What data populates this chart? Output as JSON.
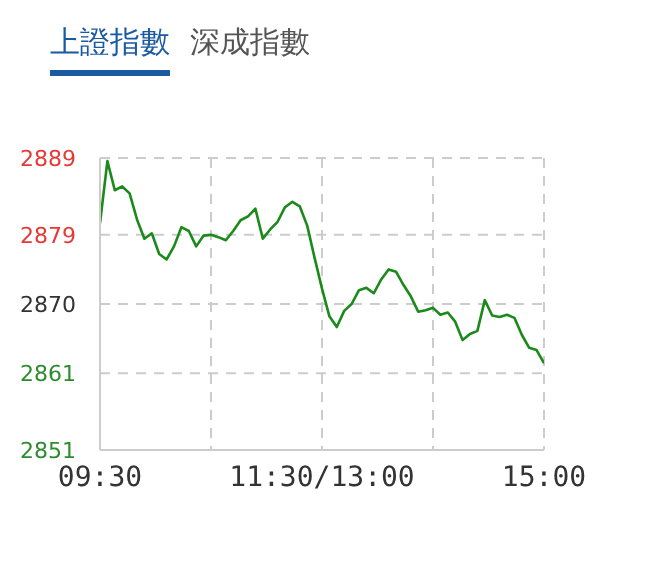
{
  "chart_data": {
    "type": "line",
    "title": "上證指數",
    "annotations": [
      "深成指數"
    ],
    "categories": [
      "09:30",
      null,
      null,
      null,
      null,
      null,
      null,
      null,
      null,
      null,
      null,
      null,
      null,
      null,
      null,
      null,
      null,
      null,
      null,
      null,
      null,
      null,
      null,
      null,
      null,
      null,
      null,
      null,
      null,
      null,
      "11:30/13:00",
      null,
      null,
      null,
      null,
      null,
      null,
      null,
      null,
      null,
      null,
      null,
      null,
      null,
      null,
      null,
      null,
      null,
      null,
      null,
      null,
      null,
      null,
      null,
      null,
      null,
      null,
      null,
      null,
      null,
      "15:00"
    ],
    "series": [
      {
        "color": "#1a8a1a",
        "values": [
          2880.5,
          2888.6,
          2884.8,
          2885.3,
          2884.4,
          2881,
          2878.5,
          2879.2,
          2876.5,
          2875.8,
          2877.5,
          2880,
          2879.5,
          2877.5,
          2878.9,
          2879,
          2878.7,
          2878.3,
          2879.5,
          2880.9,
          2881.4,
          2882.4,
          2878.5,
          2879.7,
          2880.7,
          2882.6,
          2883.3,
          2882.7,
          2880.2,
          2876,
          2872,
          2868.4,
          2867,
          2869.1,
          2870,
          2871.8,
          2872.1,
          2871.4,
          2873.2,
          2874.5,
          2874.2,
          2872.5,
          2871,
          2869,
          2869.2,
          2869.5,
          2868.6,
          2868.9,
          2867.7,
          2865.3,
          2866.1,
          2866.5,
          2870.5,
          2868.5,
          2868.3,
          2868.6,
          2868.2,
          2866,
          2864.3,
          2864,
          2862.3
        ]
      }
    ],
    "ylim": [
      2851,
      2889
    ],
    "yticks": [
      2851,
      2861,
      2870,
      2879,
      2889
    ],
    "grid": true,
    "marker": "none",
    "line_style": "solid"
  }
}
